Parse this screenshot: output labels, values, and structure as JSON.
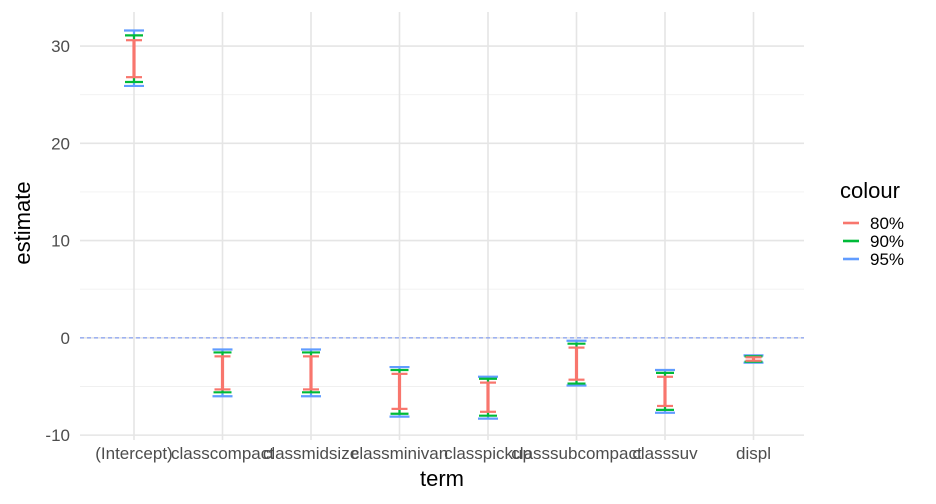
{
  "chart_data": {
    "type": "errorbar",
    "title": "",
    "xlabel": "term",
    "ylabel": "estimate",
    "ylim": [
      -10.5,
      33.5
    ],
    "yticks": [
      -10,
      0,
      10,
      20,
      30
    ],
    "ytick_labels": [
      "-10",
      "0",
      "10",
      "20",
      "30"
    ],
    "reference_line": {
      "y": 0,
      "color": "#6f8ff3",
      "style": "dashed"
    },
    "categories": [
      "(Intercept)",
      "classcompact",
      "classmidsize",
      "classminivan",
      "classpickup",
      "classsubcompact",
      "classsuv",
      "displ"
    ],
    "legend": {
      "title": "colour",
      "entries": [
        "80%",
        "90%",
        "95%"
      ]
    },
    "series": [
      {
        "name": "80%",
        "color": "#F8766D",
        "intervals": [
          [
            26.8,
            30.6
          ],
          [
            -5.3,
            -1.9
          ],
          [
            -5.3,
            -1.9
          ],
          [
            -7.3,
            -3.7
          ],
          [
            -7.6,
            -4.6
          ],
          [
            -4.3,
            -1.0
          ],
          [
            -7.0,
            -4.0
          ],
          [
            -2.35,
            -2.0
          ]
        ]
      },
      {
        "name": "90%",
        "color": "#00BA38",
        "intervals": [
          [
            26.3,
            31.1
          ],
          [
            -5.6,
            -1.5
          ],
          [
            -5.6,
            -1.5
          ],
          [
            -7.8,
            -3.3
          ],
          [
            -8.0,
            -4.2
          ],
          [
            -4.7,
            -0.6
          ],
          [
            -7.4,
            -3.6
          ],
          [
            -2.45,
            -1.9
          ]
        ]
      },
      {
        "name": "95%",
        "color": "#619CFF",
        "intervals": [
          [
            25.9,
            31.6
          ],
          [
            -6.0,
            -1.2
          ],
          [
            -6.0,
            -1.2
          ],
          [
            -8.1,
            -3.0
          ],
          [
            -8.3,
            -4.0
          ],
          [
            -4.9,
            -0.3
          ],
          [
            -7.7,
            -3.3
          ],
          [
            -2.55,
            -1.8
          ]
        ]
      }
    ],
    "grid": true
  }
}
